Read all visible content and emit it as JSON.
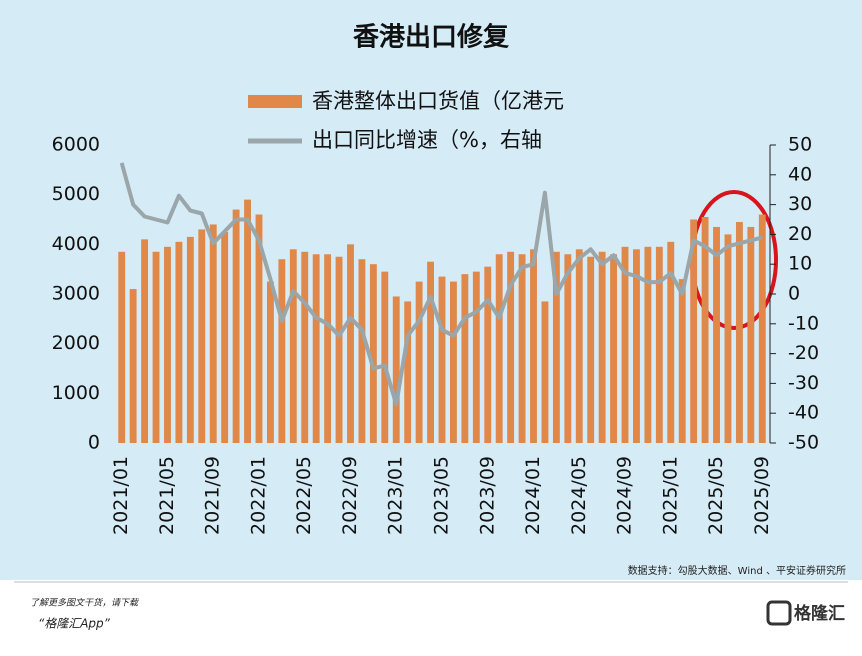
{
  "chart_data": {
    "type": "bar-line",
    "title": "香港出口修复",
    "categories": [
      "2021/01",
      null,
      null,
      null,
      "2021/05",
      null,
      null,
      null,
      "2021/09",
      null,
      null,
      null,
      "2022/01",
      null,
      null,
      null,
      "2022/05",
      null,
      null,
      null,
      "2022/09",
      null,
      null,
      null,
      "2023/01",
      null,
      null,
      null,
      "2023/05",
      null,
      null,
      null,
      "2023/09",
      null,
      null,
      null,
      "2024/01",
      null,
      null,
      null,
      "2024/05",
      null,
      null,
      null,
      "2024/09",
      null,
      null,
      null,
      "2025/01",
      null,
      null,
      null,
      "2025/05",
      null,
      null,
      null,
      "2025/09"
    ],
    "series": [
      {
        "name": "香港整体出口货值（亿港元",
        "color": "#e0874a",
        "kind": "bar",
        "values": [
          3850,
          3100,
          4100,
          3850,
          3950,
          4050,
          4150,
          4300,
          4400,
          4250,
          4700,
          4900,
          4600,
          3250,
          3700,
          3900,
          3850,
          3800,
          3800,
          3750,
          4000,
          3700,
          3600,
          3450,
          2950,
          2850,
          3250,
          3650,
          3350,
          3250,
          3400,
          3450,
          3550,
          3800,
          3850,
          3800,
          3900,
          2850,
          3850,
          3800,
          3900,
          3750,
          3850,
          3800,
          3950,
          3900,
          3950,
          3950,
          4050,
          3300,
          4500,
          4550,
          4350,
          4200,
          4450,
          4350,
          4600
        ]
      },
      {
        "name": "出口同比增速（%，右轴",
        "color": "#9aa6a9",
        "kind": "line",
        "axis": "y2",
        "values": [
          44,
          30,
          26,
          25,
          24,
          33,
          28,
          27,
          17,
          21,
          25,
          25,
          18,
          5,
          -9,
          1,
          -3,
          -8,
          -10,
          -14,
          -8,
          -12,
          -25,
          -24,
          -37,
          -14,
          -9,
          -1,
          -12,
          -14,
          -8,
          -6,
          -2,
          -8,
          3,
          9,
          10,
          34,
          0,
          7,
          12,
          15,
          10,
          13,
          7,
          6,
          4,
          4,
          7,
          0,
          18,
          16,
          13,
          16,
          17,
          18,
          19
        ]
      }
    ],
    "ylim": [
      0,
      6000
    ],
    "yticks": [
      0,
      1000,
      2000,
      3000,
      4000,
      5000,
      6000
    ],
    "y2lim": [
      -50,
      50
    ],
    "y2ticks": [
      -50,
      -40,
      -30,
      -20,
      -10,
      0,
      10,
      20,
      30,
      40,
      50
    ],
    "source": "数据支持：勾股大数据、Wind 、平安证券研究所",
    "footer": {
      "line1": "了解更多图文干货，请下载",
      "line2": "“格隆汇App”",
      "logo": "格隆汇"
    }
  }
}
